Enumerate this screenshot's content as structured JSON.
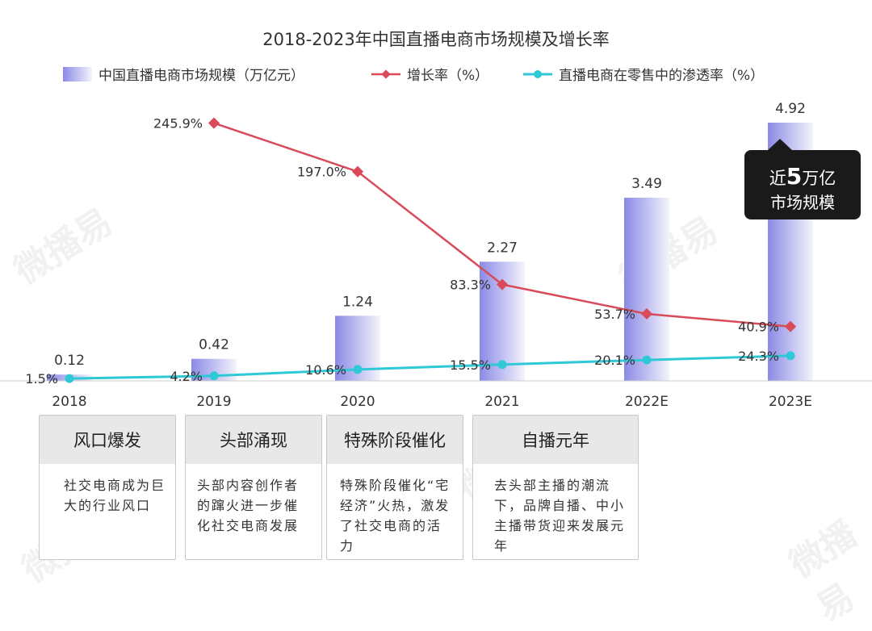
{
  "watermark_text": "微播易",
  "chart_data": {
    "type": "bar",
    "title": "2018-2023年中国直播电商市场规模及增长率",
    "categories": [
      "2018",
      "2019",
      "2020",
      "2021",
      "2022E",
      "2023E"
    ],
    "series": [
      {
        "name": "中国直播电商市场规模（万亿元）",
        "kind": "bar",
        "values": [
          0.12,
          0.42,
          1.24,
          2.27,
          3.49,
          4.92
        ],
        "labels": [
          "0.12",
          "0.42",
          "1.24",
          "2.27",
          "3.49",
          "4.92"
        ]
      },
      {
        "name": "增长率（%）",
        "kind": "line",
        "color": "#d94a5a",
        "values": [
          null,
          245.9,
          197.0,
          83.3,
          53.7,
          40.9
        ],
        "labels": [
          "",
          "245.9%",
          "197.0%",
          "83.3%",
          "53.7%",
          "40.9%"
        ]
      },
      {
        "name": "直播电商在零售中的渗透率（%）",
        "kind": "line",
        "color": "#2ec8d6",
        "values": [
          1.5,
          4.2,
          10.6,
          15.5,
          20.1,
          24.3
        ],
        "labels": [
          "1.5%",
          "4.2%",
          "10.6%",
          "15.5%",
          "20.1%",
          "24.3%"
        ]
      }
    ],
    "colors": {
      "bar_start": "#8a8ae6",
      "bar_end": "#f4f4fb",
      "axis": "#cccccc"
    },
    "legend_position": "top",
    "callout": {
      "prefix": "近",
      "number": "5",
      "suffix": "万亿",
      "line2": "市场规模"
    }
  },
  "stages": [
    {
      "title": "风口爆发",
      "desc": "社交电商成为巨大的行业风口"
    },
    {
      "title": "头部涌现",
      "desc": "头部内容创作者的蹿火进一步催化社交电商发展"
    },
    {
      "title": "特殊阶段催化",
      "desc": "特殊阶段催化“宅经济”火热，激发了社交电商的活力"
    },
    {
      "title": "自播元年",
      "desc": "去头部主播的潮流下，品牌自播、中小主播带货迎来发展元年"
    }
  ]
}
